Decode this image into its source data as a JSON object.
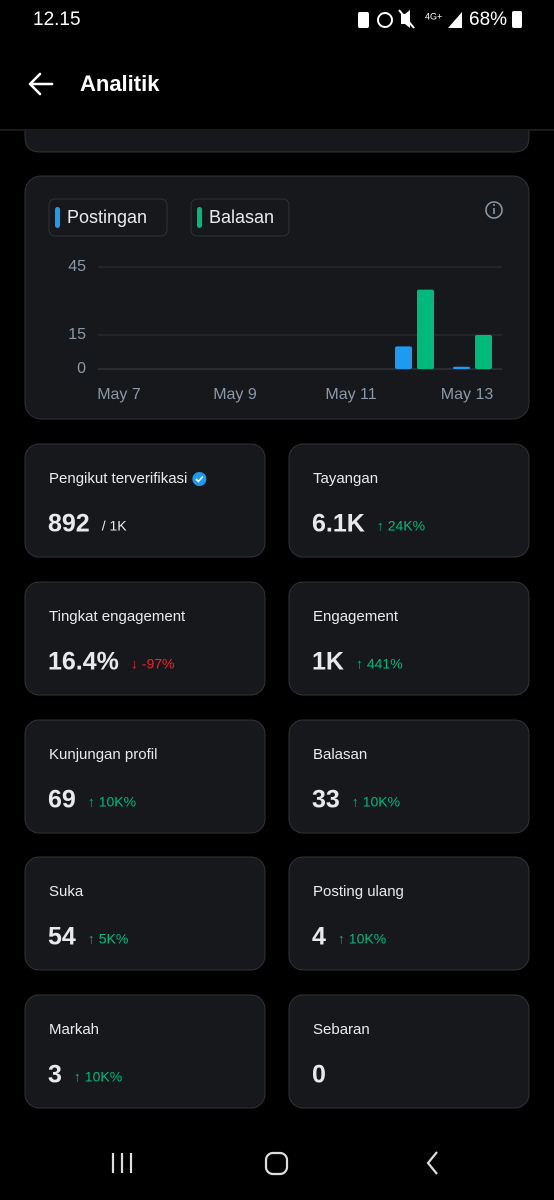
{
  "status_bar": {
    "time": "12.15",
    "battery": "68%"
  },
  "header": {
    "title": "Analitik"
  },
  "chart_data": {
    "type": "bar",
    "categories": [
      "May 7",
      null,
      "May 9",
      null,
      "May 11",
      null,
      "May 13"
    ],
    "series": [
      {
        "name": "Postingan",
        "color": "#1d9bf0",
        "values": [
          0,
          0,
          0,
          0,
          0,
          10,
          1
        ]
      },
      {
        "name": "Balasan",
        "color": "#00ba7c",
        "values": [
          0,
          0,
          0,
          0,
          0,
          35,
          15
        ]
      }
    ],
    "ylim": [
      0,
      45
    ],
    "yticks": [
      0,
      15,
      45
    ],
    "grid": true
  },
  "cards": [
    {
      "label": "Pengikut terverifikasi",
      "value": "892",
      "suffix": "/ 1K"
    },
    {
      "label": "Tayangan",
      "value": "6.1K",
      "change": "↑ 24K%",
      "color": "#00ba7c"
    },
    {
      "label": "Tingkat engagement",
      "value": "16.4%",
      "change": "↓ -97%",
      "color": "#f4212e"
    },
    {
      "label": "Engagement",
      "value": "1K",
      "change": "↑ 441%",
      "color": "#00ba7c"
    },
    {
      "label": "Kunjungan profil",
      "value": "69",
      "change": "↑ 10K%",
      "color": "#00ba7c"
    },
    {
      "label": "Balasan",
      "value": "33",
      "change": "↑ 10K%",
      "color": "#00ba7c"
    },
    {
      "label": "Suka",
      "value": "54",
      "change": "↑ 5K%",
      "color": "#00ba7c"
    },
    {
      "label": "Posting ulang",
      "value": "4",
      "change": "↑ 10K%",
      "color": "#00ba7c"
    },
    {
      "label": "Markah",
      "value": "3",
      "change": "↑ 10K%",
      "color": "#00ba7c"
    },
    {
      "label": "Sebaran",
      "value": "0"
    }
  ]
}
